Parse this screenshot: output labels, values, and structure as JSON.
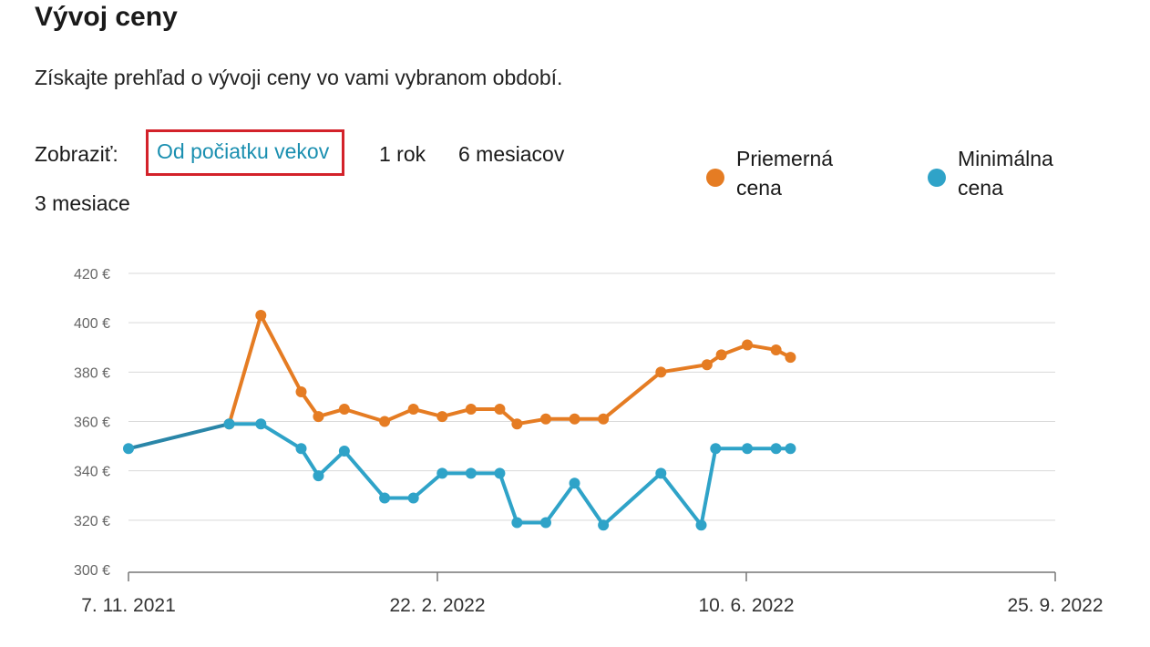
{
  "header": {
    "title": "Vývoj ceny",
    "subtitle": "Získajte prehľad o vývoji ceny vo vami vybranom období."
  },
  "controls": {
    "label": "Zobraziť:",
    "ranges": [
      "Od počiatku vekov",
      "1 rok",
      "6 mesiacov",
      "3 mesiace"
    ],
    "selected": "Od počiatku vekov"
  },
  "colors": {
    "avg": "#e57c23",
    "min": "#2fa3c8",
    "min_early": "#2a86a8",
    "grid": "#d9d9d9",
    "selection_box": "#d3222a"
  },
  "legend": [
    {
      "label": "Priemerná cena",
      "color": "#e57c23"
    },
    {
      "label": "Minimálna cena",
      "color": "#2fa3c8"
    }
  ],
  "chart_data": {
    "type": "line",
    "y_unit": "€",
    "ylim": [
      300,
      420
    ],
    "yticks": [
      "420 €",
      "400 €",
      "380 €",
      "360 €",
      "340 €",
      "320 €",
      "300 €"
    ],
    "xlim": [
      "2021-11-07",
      "2022-09-25"
    ],
    "xticks": [
      "7. 11. 2021",
      "22. 2. 2022",
      "10. 6. 2022",
      "25. 9. 2022"
    ],
    "grid": true,
    "legend_position": "top-right",
    "series": [
      {
        "name": "Priemerná cena",
        "color": "#e57c23",
        "points": [
          [
            "2021-12-12",
            359
          ],
          [
            "2021-12-23",
            403
          ],
          [
            "2022-01-06",
            372
          ],
          [
            "2022-01-12",
            362
          ],
          [
            "2022-01-21",
            365
          ],
          [
            "2022-02-04",
            360
          ],
          [
            "2022-02-14",
            365
          ],
          [
            "2022-02-24",
            362
          ],
          [
            "2022-03-06",
            365
          ],
          [
            "2022-03-16",
            365
          ],
          [
            "2022-03-22",
            359
          ],
          [
            "2022-04-01",
            361
          ],
          [
            "2022-04-11",
            361
          ],
          [
            "2022-04-21",
            361
          ],
          [
            "2022-05-11",
            380
          ],
          [
            "2022-05-27",
            383
          ],
          [
            "2022-06-01",
            387
          ],
          [
            "2022-06-10",
            391
          ],
          [
            "2022-06-20",
            389
          ],
          [
            "2022-06-25",
            386
          ]
        ]
      },
      {
        "name": "Minimálna cena",
        "color": "#2fa3c8",
        "points": [
          [
            "2021-11-07",
            349
          ],
          [
            "2021-12-12",
            359
          ],
          [
            "2021-12-23",
            359
          ],
          [
            "2022-01-06",
            349
          ],
          [
            "2022-01-12",
            338
          ],
          [
            "2022-01-21",
            348
          ],
          [
            "2022-02-04",
            329
          ],
          [
            "2022-02-14",
            329
          ],
          [
            "2022-02-24",
            339
          ],
          [
            "2022-03-06",
            339
          ],
          [
            "2022-03-16",
            339
          ],
          [
            "2022-03-22",
            319
          ],
          [
            "2022-04-01",
            319
          ],
          [
            "2022-04-11",
            335
          ],
          [
            "2022-04-21",
            318
          ],
          [
            "2022-05-11",
            339
          ],
          [
            "2022-05-25",
            318
          ],
          [
            "2022-05-30",
            349
          ],
          [
            "2022-06-10",
            349
          ],
          [
            "2022-06-20",
            349
          ],
          [
            "2022-06-25",
            349
          ]
        ]
      }
    ]
  }
}
